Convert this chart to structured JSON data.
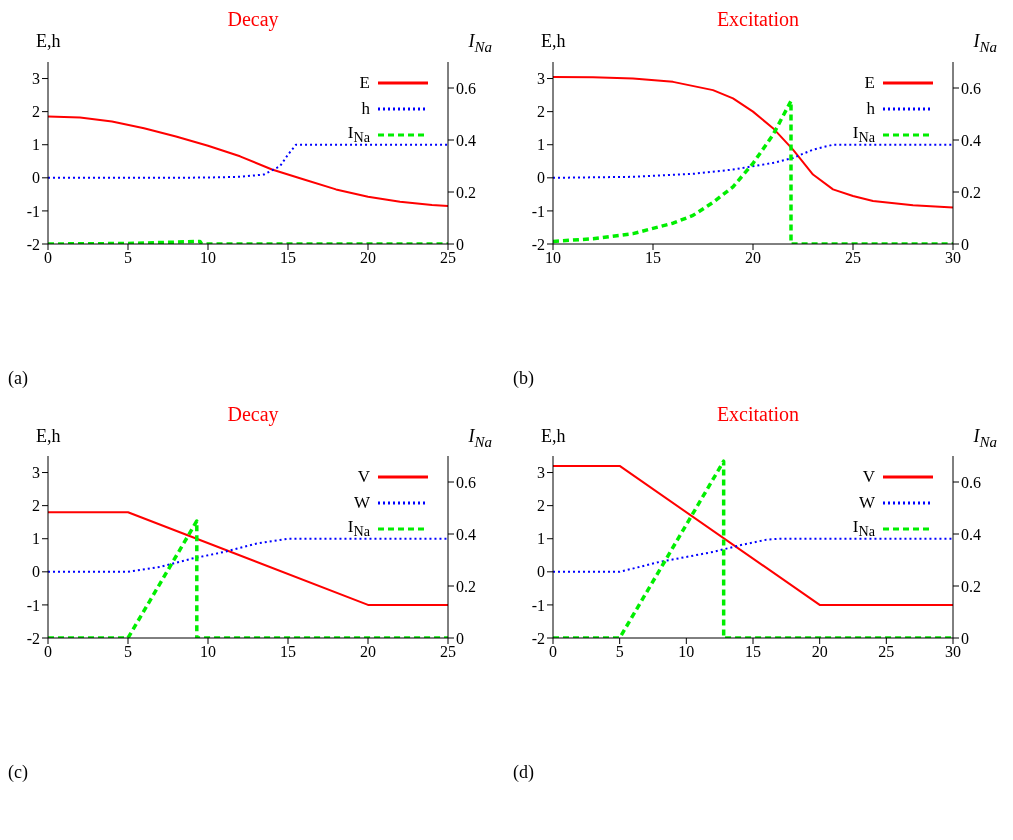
{
  "chart_data": [
    {
      "type": "line",
      "title": "Decay",
      "ylabel": "E,h",
      "y2label": "I$_{Na}$",
      "xlim": [
        0,
        25
      ],
      "xticks": [
        0,
        5,
        10,
        15,
        20,
        25
      ],
      "ylim": [
        -2,
        3.5
      ],
      "yticks": [
        -2,
        -1,
        0,
        1,
        2,
        3
      ],
      "y2lim": [
        0,
        0.7
      ],
      "y2ticks": [
        0,
        0.2,
        0.4,
        0.6
      ],
      "legend": "top right",
      "annotations": [
        "(a)"
      ],
      "series": [
        {
          "name": "E",
          "color": "#ff0000",
          "line_style": "solid",
          "x": [
            0,
            2,
            4,
            6,
            8,
            10,
            12,
            14,
            16,
            18,
            20,
            22,
            24,
            25
          ],
          "values": [
            1.85,
            1.82,
            1.7,
            1.5,
            1.25,
            0.97,
            0.65,
            0.25,
            -0.05,
            -0.35,
            -0.57,
            -0.72,
            -0.82,
            -0.85
          ]
        },
        {
          "name": "h",
          "color": "#0000ff",
          "line_style": "dotted",
          "x": [
            0,
            8,
            10,
            12,
            13.5,
            14.5,
            15,
            15.5,
            25
          ],
          "values": [
            0,
            0,
            0.01,
            0.03,
            0.1,
            0.35,
            0.7,
            1,
            1
          ]
        },
        {
          "name": "I$_{Na}$",
          "color": "#00ee00",
          "line_style": "dashed",
          "axis": "y2",
          "x": [
            0,
            5,
            9.5,
            9.6,
            25
          ],
          "values": [
            0,
            0.002,
            0.01,
            0,
            0
          ]
        }
      ]
    },
    {
      "type": "line",
      "title": "Excitation",
      "ylabel": "E,h",
      "y2label": "I$_{Na}$",
      "xlim": [
        10,
        30
      ],
      "xticks": [
        10,
        15,
        20,
        25,
        30
      ],
      "ylim": [
        -2,
        3.5
      ],
      "yticks": [
        -2,
        -1,
        0,
        1,
        2,
        3
      ],
      "y2lim": [
        0,
        0.7
      ],
      "y2ticks": [
        0,
        0.2,
        0.4,
        0.6
      ],
      "legend": "top right",
      "annotations": [
        "(b)"
      ],
      "series": [
        {
          "name": "E",
          "color": "#ff0000",
          "line_style": "solid",
          "x": [
            10,
            12,
            14,
            16,
            18,
            19,
            20,
            21,
            22,
            23,
            24,
            25,
            26,
            28,
            30
          ],
          "values": [
            3.05,
            3.04,
            3.0,
            2.9,
            2.65,
            2.4,
            2.0,
            1.5,
            0.85,
            0.1,
            -0.35,
            -0.55,
            -0.7,
            -0.83,
            -0.9
          ]
        },
        {
          "name": "h",
          "color": "#0000ff",
          "line_style": "dotted",
          "x": [
            10,
            14,
            17,
            19,
            21,
            22,
            23,
            24,
            30
          ],
          "values": [
            0,
            0.03,
            0.12,
            0.25,
            0.45,
            0.6,
            0.85,
            1,
            1
          ]
        },
        {
          "name": "I$_{Na}$",
          "color": "#00ee00",
          "line_style": "dashed",
          "axis": "y2",
          "x": [
            10,
            12,
            14,
            16,
            17,
            18,
            19,
            20,
            21,
            21.9,
            21.9,
            30
          ],
          "values": [
            0.01,
            0.02,
            0.04,
            0.08,
            0.11,
            0.16,
            0.22,
            0.31,
            0.42,
            0.55,
            0,
            0
          ]
        }
      ]
    },
    {
      "type": "line",
      "title": "Decay",
      "ylabel": "E,h",
      "y2label": "I$_{Na}$",
      "xlim": [
        0,
        25
      ],
      "xticks": [
        0,
        5,
        10,
        15,
        20,
        25
      ],
      "ylim": [
        -2,
        3.5
      ],
      "yticks": [
        -2,
        -1,
        0,
        1,
        2,
        3
      ],
      "y2lim": [
        0,
        0.7
      ],
      "y2ticks": [
        0,
        0.2,
        0.4,
        0.6
      ],
      "legend": "top right",
      "annotations": [
        "(c)"
      ],
      "series": [
        {
          "name": "V",
          "color": "#ff0000",
          "line_style": "solid",
          "x": [
            0,
            5,
            20,
            25
          ],
          "values": [
            1.8,
            1.8,
            -1,
            -1
          ]
        },
        {
          "name": "W",
          "color": "#0000ff",
          "line_style": "dotted",
          "x": [
            0,
            5,
            7,
            9,
            11,
            13,
            15,
            25
          ],
          "values": [
            0,
            0,
            0.15,
            0.4,
            0.6,
            0.85,
            1,
            1
          ]
        },
        {
          "name": "I$_{Na}$",
          "color": "#00ee00",
          "line_style": "dashed",
          "axis": "y2",
          "x": [
            0,
            5,
            9.3,
            9.3,
            25
          ],
          "values": [
            0,
            0,
            0.45,
            0,
            0
          ]
        }
      ]
    },
    {
      "type": "line",
      "title": "Excitation",
      "ylabel": "E,h",
      "y2label": "I$_{Na}$",
      "xlim": [
        0,
        30
      ],
      "xticks": [
        0,
        5,
        10,
        15,
        20,
        25,
        30
      ],
      "ylim": [
        -2,
        3.5
      ],
      "yticks": [
        -2,
        -1,
        0,
        1,
        2,
        3
      ],
      "y2lim": [
        0,
        0.7
      ],
      "y2ticks": [
        0,
        0.2,
        0.4,
        0.6
      ],
      "legend": "top right",
      "annotations": [
        "(d)"
      ],
      "series": [
        {
          "name": "V",
          "color": "#ff0000",
          "line_style": "solid",
          "x": [
            0,
            5,
            20,
            30
          ],
          "values": [
            3.2,
            3.2,
            -1,
            -1
          ]
        },
        {
          "name": "W",
          "color": "#0000ff",
          "line_style": "dotted",
          "x": [
            0,
            5,
            8,
            10,
            12,
            14,
            16,
            17,
            30
          ],
          "values": [
            0,
            0,
            0.3,
            0.45,
            0.6,
            0.8,
            0.97,
            1,
            1
          ]
        },
        {
          "name": "I$_{Na}$",
          "color": "#00ee00",
          "line_style": "dashed",
          "axis": "y2",
          "x": [
            0,
            5,
            12.8,
            12.8,
            30
          ],
          "values": [
            0,
            0,
            0.68,
            0,
            0
          ]
        }
      ]
    }
  ]
}
